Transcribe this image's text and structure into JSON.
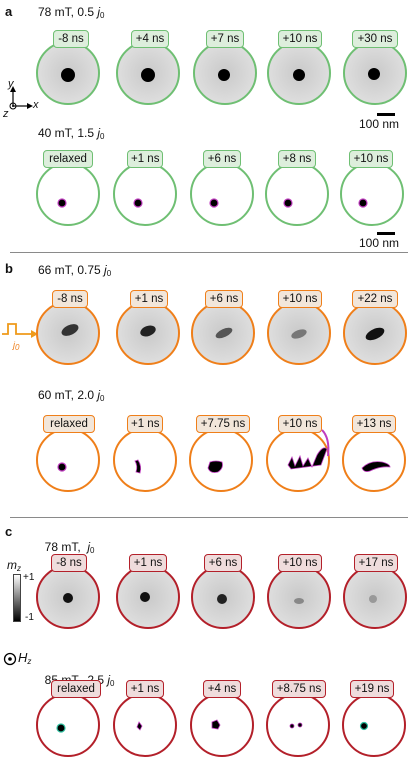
{
  "panels": {
    "a": {
      "letter": "a",
      "row1": {
        "field": "78 mT, 0.5 ",
        "j": "j",
        "jsub": "0",
        "labels": [
          "-8 ns",
          "+4 ns",
          "+7 ns",
          "+10 ns",
          "+30 ns"
        ]
      },
      "row2": {
        "field": "40 mT, 1.5 ",
        "j": "j",
        "jsub": "0",
        "labels": [
          "relaxed",
          "+1 ns",
          "+6 ns",
          "+8 ns",
          "+10 ns"
        ]
      },
      "scalebar": "100 nm",
      "axes": {
        "y": "y",
        "x": "x",
        "z": "z"
      }
    },
    "b": {
      "letter": "b",
      "row1": {
        "field": "66 mT, 0.75 ",
        "j": "j",
        "jsub": "0",
        "labels": [
          "-8 ns",
          "+1 ns",
          "+6 ns",
          "+10 ns",
          "+22 ns"
        ]
      },
      "row2": {
        "field": "60 mT, 2.0 ",
        "j": "j",
        "jsub": "0",
        "labels": [
          "relaxed",
          "+1 ns",
          "+7.75 ns",
          "+10 ns",
          "+13 ns"
        ]
      },
      "pulse_label": "j",
      "pulse_sub": "0"
    },
    "c": {
      "letter": "c",
      "row1": {
        "field": "78 mT,  ",
        "j": "j",
        "jsub": "0",
        "labels": [
          "-8 ns",
          "+1 ns",
          "+6 ns",
          "+10 ns",
          "+17 ns"
        ]
      },
      "row2": {
        "field": "85 mT,  2.5 ",
        "j": "j",
        "jsub": "0",
        "labels": [
          "relaxed",
          "+1 ns",
          "+4 ns",
          "+8.75 ns",
          "+19 ns"
        ]
      },
      "colorbar": {
        "title": "m",
        "title_sub": "z",
        "max": "+1",
        "min": "-1"
      },
      "hz_label": "H",
      "hz_sub": "z"
    }
  },
  "colors": {
    "green": "#6fbf73",
    "orange": "#ef7f1a",
    "red": "#b3202a"
  }
}
